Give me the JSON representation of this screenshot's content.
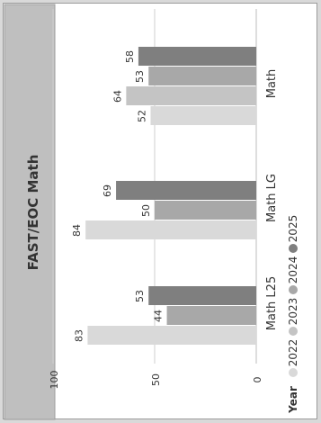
{
  "chart_data": {
    "type": "bar",
    "title": "FAST/EOC Math",
    "categories": [
      "Math",
      "Math LG",
      "Math L25"
    ],
    "series": [
      {
        "name": "2022",
        "color": "#d9d9d9",
        "values": [
          52,
          84,
          83
        ]
      },
      {
        "name": "2023",
        "color": "#c4c4c4",
        "values": [
          64,
          null,
          null
        ]
      },
      {
        "name": "2024",
        "color": "#a8a8a8",
        "values": [
          53,
          50,
          44
        ]
      },
      {
        "name": "2025",
        "color": "#7f7f7f",
        "values": [
          58,
          69,
          53
        ]
      }
    ],
    "axis_ticks": [
      "0",
      "50",
      "100"
    ],
    "ylim": [
      0,
      100
    ],
    "legend_title": "Year",
    "legend_position": "bottom",
    "grid": true,
    "orientation": "rotated-90-clockwise"
  }
}
